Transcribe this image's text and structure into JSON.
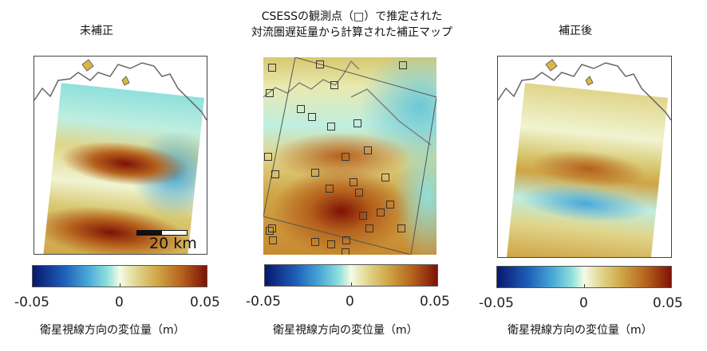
{
  "panels": [
    {
      "title": "未補正",
      "colorbar": {
        "min": "-0.05",
        "mid": "0",
        "max": "0.05",
        "label": "衛星視線方向の変位量（m）"
      },
      "scale_label": "20 km"
    },
    {
      "title_line1": "CSESSの観測点（□）で推定された",
      "title_line2": "対流圏遅延量から計算された補正マップ",
      "colorbar": {
        "min": "-0.05",
        "mid": "0",
        "max": "0.05",
        "label": "衛星視線方向の変位量（m）"
      }
    },
    {
      "title": "補正後",
      "colorbar": {
        "min": "-0.05",
        "mid": "0",
        "max": "0.05",
        "label": "衛星視線方向の変位量（m）"
      }
    }
  ],
  "colors": {
    "low": "#08176e",
    "zero": "#f4fbe8",
    "high": "#7e1206"
  }
}
